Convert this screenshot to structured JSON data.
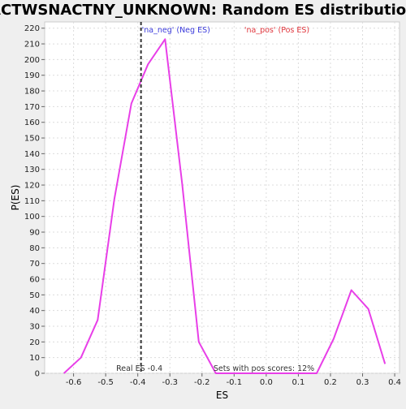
{
  "chart_data": {
    "type": "line",
    "title": "ACTWSNACTNY_UNKNOWN: Random ES distribution",
    "xlabel": "ES",
    "ylabel": "P(ES)",
    "xlim": [
      -0.69,
      0.415
    ],
    "ylim": [
      0,
      224
    ],
    "x_ticks": [
      -0.6,
      -0.5,
      -0.4,
      -0.3,
      -0.2,
      -0.1,
      0.0,
      0.1,
      0.2,
      0.3,
      0.4
    ],
    "x_tick_labels": [
      "-0.6",
      "-0.5",
      "-0.4",
      "-0.3",
      "-0.2",
      "-0.1",
      "0.0",
      "0.1",
      "0.2",
      "0.3",
      "0.4"
    ],
    "y_ticks": [
      0,
      10,
      20,
      30,
      40,
      50,
      60,
      70,
      80,
      90,
      100,
      110,
      120,
      130,
      140,
      150,
      160,
      170,
      180,
      190,
      200,
      210,
      220
    ],
    "y_tick_labels": [
      "0",
      "10",
      "20",
      "30",
      "40",
      "50",
      "60",
      "70",
      "80",
      "90",
      "100",
      "110",
      "120",
      "130",
      "140",
      "150",
      "160",
      "170",
      "180",
      "190",
      "200",
      "210",
      "220"
    ],
    "grid": true,
    "series": [
      {
        "color": "#e83fe8",
        "x": [
          -0.63,
          -0.577,
          -0.525,
          -0.473,
          -0.42,
          -0.368,
          -0.315,
          -0.262,
          -0.21,
          -0.157,
          -0.105,
          -0.052,
          0.0,
          0.052,
          0.105,
          0.157,
          0.21,
          0.265,
          0.318,
          0.37
        ],
        "y": [
          0,
          10,
          34,
          111,
          172,
          197,
          213,
          121,
          20,
          0,
          0,
          0,
          0,
          0,
          0,
          0,
          22,
          53,
          41,
          6
        ]
      }
    ],
    "real_es": {
      "value": -0.39,
      "label": "Real ES -0.4"
    },
    "annotations": {
      "neg_label": "'na_neg' (Neg ES)",
      "pos_label": "'na_pos' (Pos ES)",
      "sets_label": "Sets with pos scores: 12%"
    },
    "colors": {
      "line": "#e83fe8",
      "neg_label": "#3c3cdc",
      "pos_label": "#e0353c",
      "real_es_line": "#333333",
      "grid": "#dcdcdc",
      "plot_bg": "#ffffff",
      "page_bg": "#efefef"
    }
  }
}
